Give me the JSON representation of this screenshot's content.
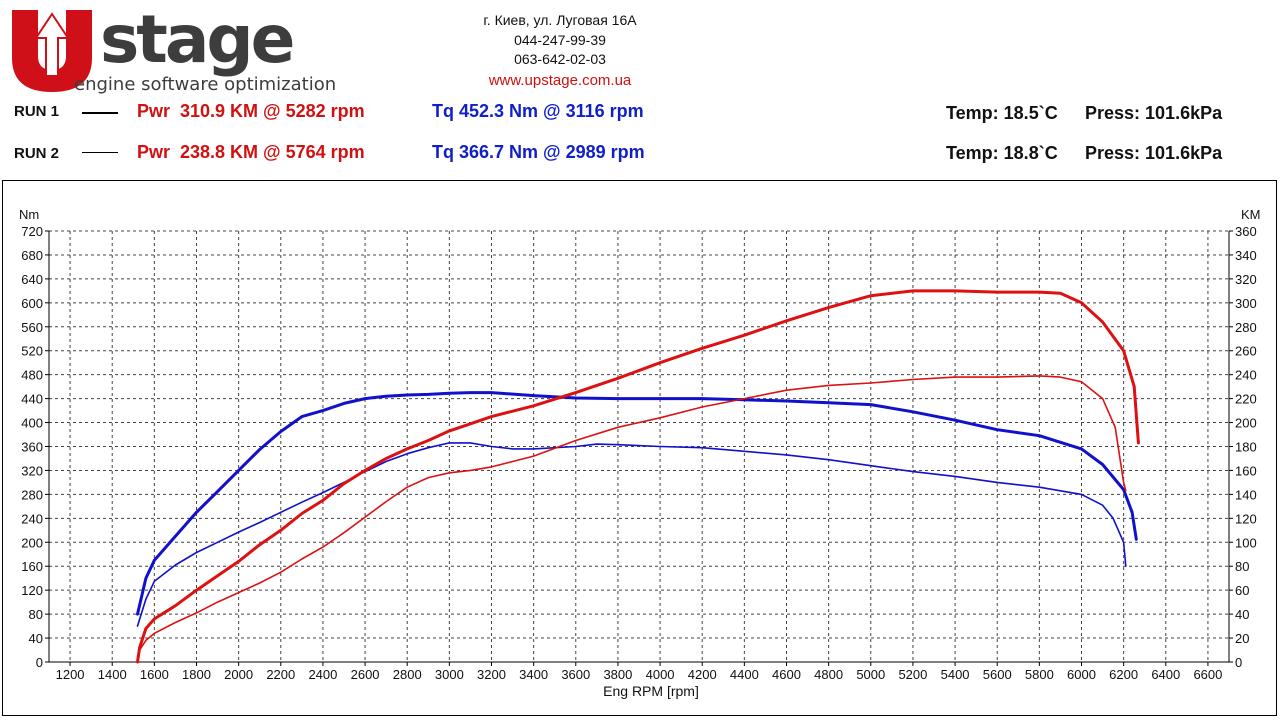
{
  "logo": {
    "brand": "Ustage",
    "tagline": "engine software optimization",
    "brand_color": "#d01018"
  },
  "contact": {
    "address": "г. Киев, ул. Луговая 16А",
    "phone1": "044-247-99-39",
    "phone2": "063-642-02-03",
    "website": "www.upstage.com.ua"
  },
  "runs": [
    {
      "label": "RUN 1",
      "pwr": "Pwr  310.9 KM @ 5282 rpm",
      "tq": "Tq 452.3 Nm @ 3116 rpm",
      "temp": "Temp: 18.5`C",
      "press": "Press: 101.6kPa"
    },
    {
      "label": "RUN 2",
      "pwr": "Pwr  238.8 KM @ 5764 rpm",
      "tq": "Tq 366.7 Nm @ 2989 rpm",
      "temp": "Temp: 18.8`C",
      "press": "Press: 101.6kPa"
    }
  ],
  "colors": {
    "power": "#dd1111",
    "torque": "#1111cc",
    "grid": "#444444"
  },
  "chart_data": {
    "type": "line",
    "xlabel": "Eng RPM [rpm]",
    "ylabel_left": "Nm",
    "ylabel_right": "KM",
    "xlim": [
      1100,
      6700
    ],
    "ylim_left": [
      0,
      720
    ],
    "ylim_right": [
      0,
      360
    ],
    "x_ticks": [
      1200,
      1400,
      1600,
      1800,
      2000,
      2200,
      2400,
      2600,
      2800,
      3000,
      3200,
      3400,
      3600,
      3800,
      4000,
      4200,
      4400,
      4600,
      4800,
      5000,
      5200,
      5400,
      5600,
      5800,
      6000,
      6200,
      6400,
      6600
    ],
    "y_ticks_left": [
      0,
      40,
      80,
      120,
      160,
      200,
      240,
      280,
      320,
      360,
      400,
      440,
      480,
      520,
      560,
      600,
      640,
      680,
      720
    ],
    "y_ticks_right": [
      0,
      20,
      40,
      60,
      80,
      100,
      120,
      140,
      160,
      180,
      200,
      220,
      240,
      260,
      280,
      300,
      320,
      340,
      360
    ],
    "grid": true,
    "series": [
      {
        "name": "RUN 1 Tq",
        "axis": "left",
        "color": "#1111cc",
        "width": 3,
        "points": [
          [
            1520,
            80
          ],
          [
            1560,
            140
          ],
          [
            1600,
            170
          ],
          [
            1700,
            210
          ],
          [
            1800,
            250
          ],
          [
            1900,
            285
          ],
          [
            2000,
            320
          ],
          [
            2100,
            355
          ],
          [
            2200,
            385
          ],
          [
            2300,
            410
          ],
          [
            2400,
            420
          ],
          [
            2500,
            432
          ],
          [
            2600,
            440
          ],
          [
            2700,
            444
          ],
          [
            2800,
            446
          ],
          [
            2900,
            447
          ],
          [
            3000,
            449
          ],
          [
            3100,
            450
          ],
          [
            3200,
            450
          ],
          [
            3400,
            445
          ],
          [
            3600,
            441
          ],
          [
            3800,
            440
          ],
          [
            4000,
            440
          ],
          [
            4200,
            440
          ],
          [
            4400,
            438
          ],
          [
            4600,
            436
          ],
          [
            4800,
            433
          ],
          [
            5000,
            430
          ],
          [
            5200,
            418
          ],
          [
            5400,
            404
          ],
          [
            5600,
            388
          ],
          [
            5800,
            378
          ],
          [
            6000,
            356
          ],
          [
            6100,
            330
          ],
          [
            6200,
            288
          ],
          [
            6240,
            250
          ],
          [
            6260,
            205
          ]
        ]
      },
      {
        "name": "RUN 2 Tq",
        "axis": "left",
        "color": "#1111cc",
        "width": 1.6,
        "points": [
          [
            1520,
            60
          ],
          [
            1560,
            105
          ],
          [
            1600,
            135
          ],
          [
            1700,
            162
          ],
          [
            1800,
            183
          ],
          [
            1900,
            200
          ],
          [
            2000,
            217
          ],
          [
            2100,
            233
          ],
          [
            2200,
            250
          ],
          [
            2300,
            267
          ],
          [
            2400,
            283
          ],
          [
            2500,
            300
          ],
          [
            2600,
            318
          ],
          [
            2700,
            335
          ],
          [
            2800,
            348
          ],
          [
            2900,
            358
          ],
          [
            3000,
            366
          ],
          [
            3100,
            366
          ],
          [
            3200,
            360
          ],
          [
            3300,
            356
          ],
          [
            3400,
            356
          ],
          [
            3600,
            360
          ],
          [
            3700,
            364
          ],
          [
            3800,
            363
          ],
          [
            4000,
            360
          ],
          [
            4200,
            358
          ],
          [
            4400,
            352
          ],
          [
            4600,
            346
          ],
          [
            4800,
            338
          ],
          [
            5000,
            328
          ],
          [
            5200,
            318
          ],
          [
            5400,
            310
          ],
          [
            5600,
            300
          ],
          [
            5800,
            292
          ],
          [
            6000,
            280
          ],
          [
            6100,
            262
          ],
          [
            6150,
            240
          ],
          [
            6200,
            200
          ],
          [
            6210,
            160
          ]
        ]
      },
      {
        "name": "RUN 1 Pwr",
        "axis": "right",
        "color": "#dd1111",
        "width": 3,
        "points": [
          [
            1520,
            0
          ],
          [
            1530,
            12
          ],
          [
            1560,
            28
          ],
          [
            1600,
            36
          ],
          [
            1700,
            47
          ],
          [
            1800,
            60
          ],
          [
            1900,
            72
          ],
          [
            2000,
            84
          ],
          [
            2100,
            98
          ],
          [
            2200,
            110
          ],
          [
            2300,
            124
          ],
          [
            2400,
            135
          ],
          [
            2500,
            149
          ],
          [
            2600,
            160
          ],
          [
            2700,
            170
          ],
          [
            2800,
            178
          ],
          [
            2900,
            185
          ],
          [
            3000,
            193
          ],
          [
            3100,
            199
          ],
          [
            3200,
            205
          ],
          [
            3400,
            214
          ],
          [
            3600,
            225
          ],
          [
            3800,
            237
          ],
          [
            4000,
            250
          ],
          [
            4200,
            262
          ],
          [
            4400,
            273
          ],
          [
            4600,
            285
          ],
          [
            4800,
            296
          ],
          [
            5000,
            306
          ],
          [
            5200,
            310
          ],
          [
            5400,
            310
          ],
          [
            5600,
            309
          ],
          [
            5800,
            309
          ],
          [
            5900,
            308
          ],
          [
            6000,
            300
          ],
          [
            6100,
            284
          ],
          [
            6200,
            260
          ],
          [
            6250,
            230
          ],
          [
            6270,
            183
          ]
        ]
      },
      {
        "name": "RUN 2 Pwr",
        "axis": "right",
        "color": "#dd1111",
        "width": 1.6,
        "points": [
          [
            1520,
            0
          ],
          [
            1530,
            10
          ],
          [
            1560,
            18
          ],
          [
            1600,
            24
          ],
          [
            1700,
            33
          ],
          [
            1800,
            41
          ],
          [
            1900,
            50
          ],
          [
            2000,
            58
          ],
          [
            2100,
            66
          ],
          [
            2200,
            75
          ],
          [
            2300,
            86
          ],
          [
            2400,
            96
          ],
          [
            2500,
            108
          ],
          [
            2600,
            121
          ],
          [
            2700,
            134
          ],
          [
            2800,
            146
          ],
          [
            2900,
            154
          ],
          [
            3000,
            158
          ],
          [
            3100,
            160
          ],
          [
            3200,
            163
          ],
          [
            3400,
            172
          ],
          [
            3600,
            185
          ],
          [
            3800,
            196
          ],
          [
            4000,
            204
          ],
          [
            4200,
            213
          ],
          [
            4400,
            220
          ],
          [
            4600,
            227
          ],
          [
            4800,
            231
          ],
          [
            5000,
            233
          ],
          [
            5200,
            236
          ],
          [
            5400,
            238
          ],
          [
            5600,
            238
          ],
          [
            5800,
            239
          ],
          [
            5900,
            238
          ],
          [
            6000,
            234
          ],
          [
            6100,
            220
          ],
          [
            6160,
            196
          ],
          [
            6200,
            150
          ],
          [
            6210,
            143
          ]
        ]
      }
    ]
  }
}
